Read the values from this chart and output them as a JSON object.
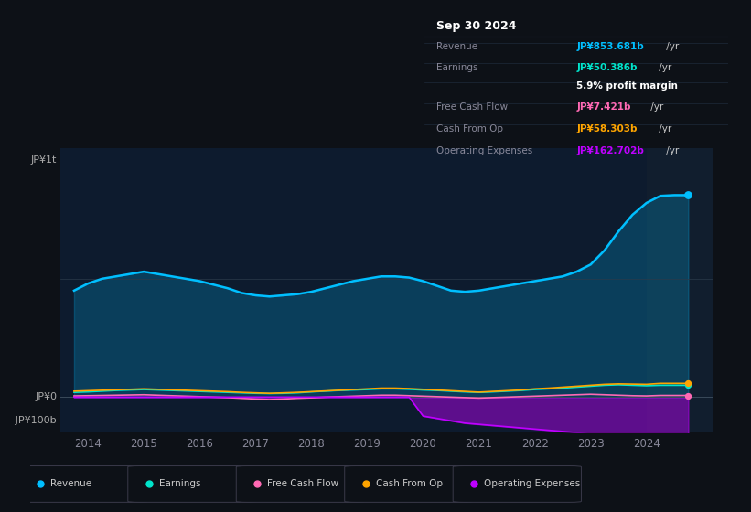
{
  "bg_color": "#0d1117",
  "plot_bg_color": "#0d1b2e",
  "title_box": {
    "date": "Sep 30 2024",
    "rows": [
      {
        "label": "Revenue",
        "value": "JP¥853.681b /yr",
        "value_color": "#00bfff"
      },
      {
        "label": "Earnings",
        "value": "JP¥50.386b /yr",
        "value_color": "#00e5cc"
      },
      {
        "label": "",
        "value": "5.9% profit margin",
        "value_color": "#ffffff"
      },
      {
        "label": "Free Cash Flow",
        "value": "JP¥7.421b /yr",
        "value_color": "#ff69b4"
      },
      {
        "label": "Cash From Op",
        "value": "JP¥58.303b /yr",
        "value_color": "#ffa500"
      },
      {
        "label": "Operating Expenses",
        "value": "JP¥162.702b /yr",
        "value_color": "#bf00ff"
      }
    ]
  },
  "ylabel_top": "JP¥1t",
  "ylabel_zero": "JP¥0",
  "ylabel_bottom": "-JP¥100b",
  "x_years": [
    2013.75,
    2014.0,
    2014.25,
    2014.5,
    2014.75,
    2015.0,
    2015.25,
    2015.5,
    2015.75,
    2016.0,
    2016.25,
    2016.5,
    2016.75,
    2017.0,
    2017.25,
    2017.5,
    2017.75,
    2018.0,
    2018.25,
    2018.5,
    2018.75,
    2019.0,
    2019.25,
    2019.5,
    2019.75,
    2020.0,
    2020.25,
    2020.5,
    2020.75,
    2021.0,
    2021.25,
    2021.5,
    2021.75,
    2022.0,
    2022.25,
    2022.5,
    2022.75,
    2023.0,
    2023.25,
    2023.5,
    2023.75,
    2024.0,
    2024.25,
    2024.5,
    2024.75
  ],
  "revenue": [
    450,
    480,
    500,
    510,
    520,
    530,
    520,
    510,
    500,
    490,
    475,
    460,
    440,
    430,
    425,
    430,
    435,
    445,
    460,
    475,
    490,
    500,
    510,
    510,
    505,
    490,
    470,
    450,
    445,
    450,
    460,
    470,
    480,
    490,
    500,
    510,
    530,
    560,
    620,
    700,
    770,
    820,
    850,
    853,
    853
  ],
  "earnings": [
    20,
    22,
    25,
    28,
    30,
    32,
    30,
    28,
    26,
    24,
    22,
    20,
    18,
    16,
    15,
    16,
    18,
    22,
    25,
    28,
    30,
    32,
    35,
    35,
    33,
    30,
    28,
    25,
    22,
    20,
    22,
    25,
    28,
    32,
    35,
    38,
    42,
    46,
    50,
    52,
    50,
    48,
    50,
    50,
    50
  ],
  "free_cash_flow": [
    5,
    6,
    7,
    8,
    9,
    10,
    8,
    6,
    4,
    2,
    0,
    -2,
    -5,
    -8,
    -10,
    -8,
    -5,
    -3,
    0,
    2,
    4,
    6,
    8,
    8,
    6,
    4,
    2,
    0,
    -2,
    -4,
    -2,
    0,
    2,
    4,
    6,
    8,
    10,
    12,
    10,
    8,
    6,
    5,
    7,
    7,
    7
  ],
  "cash_from_op": [
    25,
    27,
    29,
    31,
    33,
    35,
    33,
    31,
    29,
    27,
    25,
    23,
    20,
    18,
    16,
    18,
    20,
    23,
    26,
    29,
    32,
    35,
    38,
    38,
    36,
    33,
    30,
    27,
    24,
    21,
    24,
    27,
    30,
    35,
    38,
    42,
    46,
    50,
    54,
    56,
    55,
    54,
    58,
    58,
    58
  ],
  "operating_expenses": [
    0,
    0,
    0,
    0,
    0,
    0,
    0,
    0,
    0,
    0,
    0,
    0,
    0,
    0,
    0,
    0,
    0,
    0,
    0,
    0,
    0,
    0,
    0,
    0,
    0,
    -80,
    -90,
    -100,
    -110,
    -115,
    -120,
    -125,
    -130,
    -135,
    -140,
    -145,
    -150,
    -155,
    -158,
    -160,
    -162,
    -162,
    -163,
    -163,
    -163
  ],
  "colors": {
    "revenue": "#00bfff",
    "earnings": "#00e5cc",
    "free_cash_flow": "#ff69b4",
    "cash_from_op": "#ffa500",
    "operating_expenses": "#bf00ff"
  },
  "x_tick_labels": [
    "2014",
    "2015",
    "2016",
    "2017",
    "2018",
    "2019",
    "2020",
    "2021",
    "2022",
    "2023",
    "2024"
  ],
  "x_tick_positions": [
    2014,
    2015,
    2016,
    2017,
    2018,
    2019,
    2020,
    2021,
    2022,
    2023,
    2024
  ],
  "ylim": [
    -150,
    1050
  ],
  "xlim": [
    2013.5,
    2025.2
  ]
}
